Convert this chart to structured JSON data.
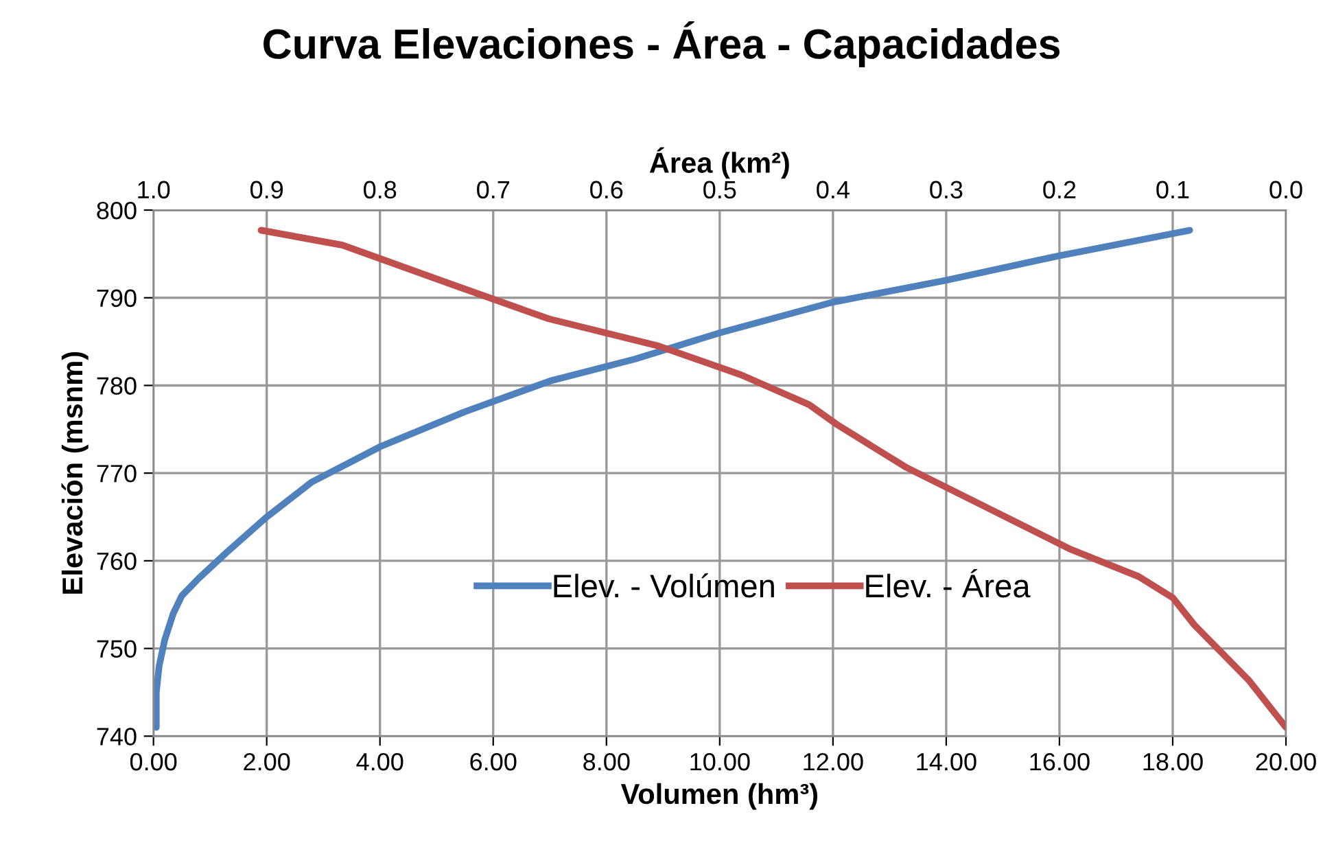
{
  "chart_data": {
    "type": "line",
    "title": "Curva Elevaciones - Área - Capacidades",
    "xlabel": "Volumen (hm³)",
    "x2label": "Área (km²)",
    "ylabel": "Elevación (msnm)",
    "xlim": [
      0,
      20
    ],
    "xticks": [
      {
        "value": 0,
        "label": "0.00"
      },
      {
        "value": 2,
        "label": "2.00"
      },
      {
        "value": 4,
        "label": "4.00"
      },
      {
        "value": 6,
        "label": "6.00"
      },
      {
        "value": 8,
        "label": "8.00"
      },
      {
        "value": 10,
        "label": "10.00"
      },
      {
        "value": 12,
        "label": "12.00"
      },
      {
        "value": 14,
        "label": "14.00"
      },
      {
        "value": 16,
        "label": "16.00"
      },
      {
        "value": 18,
        "label": "18.00"
      },
      {
        "value": 20,
        "label": "20.00"
      }
    ],
    "x2lim": [
      1,
      0
    ],
    "x2ticks": [
      {
        "value": 1,
        "label": "1.0"
      },
      {
        "value": 0.9,
        "label": "0.9"
      },
      {
        "value": 0.8,
        "label": "0.8"
      },
      {
        "value": 0.7,
        "label": "0.7"
      },
      {
        "value": 0.6,
        "label": "0.6"
      },
      {
        "value": 0.5,
        "label": "0.5"
      },
      {
        "value": 0.4,
        "label": "0.4"
      },
      {
        "value": 0.3,
        "label": "0.3"
      },
      {
        "value": 0.2,
        "label": "0.2"
      },
      {
        "value": 0.1,
        "label": "0.1"
      },
      {
        "value": 0,
        "label": "0.0"
      }
    ],
    "ylim": [
      740,
      800
    ],
    "yticks": [
      740,
      750,
      760,
      770,
      780,
      790,
      800
    ],
    "grid": true,
    "legend": "center",
    "marker": "none",
    "line_style": "solid",
    "series": [
      {
        "name": "Elev. - Volúmen",
        "color": "#4f81bd",
        "x": [
          0.05,
          0.05,
          0.1,
          0.2,
          0.35,
          0.5,
          0.8,
          1.3,
          2.0,
          2.8,
          4.0,
          5.5,
          7.0,
          8.5,
          10.0,
          12.0,
          14.0,
          16.0,
          18.3
        ],
        "values": [
          741,
          745,
          748,
          751,
          754,
          756,
          758,
          761,
          765,
          769,
          773,
          777,
          780.5,
          783,
          786,
          789.5,
          792,
          794.8,
          797.7
        ]
      },
      {
        "name": "Elev. - Área",
        "color": "#c0504d",
        "axis": "x2",
        "x": [
          0.905,
          0.833,
          0.736,
          0.651,
          0.554,
          0.481,
          0.421,
          0.396,
          0.336,
          0.263,
          0.19,
          0.13,
          0.1,
          0.081,
          0.033,
          0.0
        ],
        "values": [
          797.7,
          796,
          791.5,
          787.6,
          784.5,
          781.2,
          777.8,
          775.5,
          770.7,
          766,
          761.3,
          758.2,
          755.8,
          752.7,
          746.4,
          741
        ]
      }
    ]
  }
}
